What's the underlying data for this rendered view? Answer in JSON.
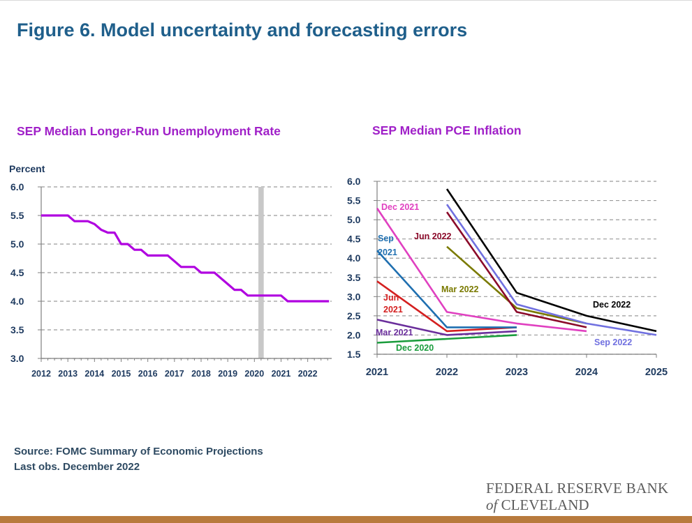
{
  "title": "Figure 6. Model uncertainty and forecasting errors",
  "footer": {
    "source": "Source: FOMC Summary of Economic Projections",
    "last_obs": "Last obs. December 2022"
  },
  "logo": {
    "line1": "FEDERAL RESERVE BANK",
    "of": "of",
    "line2": "CLEVELAND"
  },
  "colors": {
    "title": "#1f5f8b",
    "panel_title": "#a020c8",
    "bottom_bar": "#b87a3d"
  },
  "chart_data": [
    {
      "type": "line",
      "title": "SEP Median Longer-Run Unemployment Rate",
      "ylabel": "Percent",
      "ylim": [
        3.0,
        6.0
      ],
      "yticks": [
        "3.0",
        "3.5",
        "4.0",
        "4.5",
        "5.0",
        "5.5",
        "6.0"
      ],
      "xticks": [
        "2012",
        "2013",
        "2014",
        "2015",
        "2016",
        "2017",
        "2018",
        "2019",
        "2020",
        "2021",
        "2022"
      ],
      "xlim": [
        2012,
        2022.8
      ],
      "shaded_band": [
        2020.15,
        2020.35
      ],
      "grid": "horizontal dashed",
      "series": [
        {
          "color": "#b000e0",
          "points": [
            [
              2012.0,
              5.5
            ],
            [
              2013.0,
              5.5
            ],
            [
              2013.25,
              5.4
            ],
            [
              2013.75,
              5.4
            ],
            [
              2014.0,
              5.35
            ],
            [
              2014.25,
              5.25
            ],
            [
              2014.5,
              5.2
            ],
            [
              2014.75,
              5.2
            ],
            [
              2015.0,
              5.0
            ],
            [
              2015.25,
              5.0
            ],
            [
              2015.5,
              4.9
            ],
            [
              2015.75,
              4.9
            ],
            [
              2016.0,
              4.8
            ],
            [
              2016.25,
              4.8
            ],
            [
              2016.5,
              4.8
            ],
            [
              2016.75,
              4.8
            ],
            [
              2017.0,
              4.7
            ],
            [
              2017.25,
              4.6
            ],
            [
              2017.5,
              4.6
            ],
            [
              2017.75,
              4.6
            ],
            [
              2018.0,
              4.5
            ],
            [
              2018.25,
              4.5
            ],
            [
              2018.5,
              4.5
            ],
            [
              2018.75,
              4.4
            ],
            [
              2019.0,
              4.3
            ],
            [
              2019.25,
              4.2
            ],
            [
              2019.5,
              4.2
            ],
            [
              2019.75,
              4.1
            ],
            [
              2020.0,
              4.1
            ],
            [
              2020.5,
              4.1
            ],
            [
              2020.75,
              4.1
            ],
            [
              2021.0,
              4.1
            ],
            [
              2021.25,
              4.0
            ],
            [
              2021.5,
              4.0
            ],
            [
              2021.75,
              4.0
            ],
            [
              2022.0,
              4.0
            ],
            [
              2022.25,
              4.0
            ],
            [
              2022.5,
              4.0
            ],
            [
              2022.8,
              4.0
            ]
          ]
        }
      ]
    },
    {
      "type": "line",
      "title": "SEP Median PCE Inflation",
      "ylim": [
        1.5,
        6.0
      ],
      "yticks": [
        "1.5",
        "2.0",
        "2.5",
        "3.0",
        "3.5",
        "4.0",
        "4.5",
        "5.0",
        "5.5",
        "6.0"
      ],
      "xticks": [
        "2021",
        "2022",
        "2023",
        "2024",
        "2025"
      ],
      "xlim": [
        2021,
        2025
      ],
      "grid": "horizontal dashed",
      "series": [
        {
          "name": "Dec 2020",
          "color": "#1a9c3c",
          "x": [
            2021,
            2022,
            2023
          ],
          "y": [
            1.8,
            1.9,
            2.0
          ]
        },
        {
          "name": "Mar 2021",
          "color": "#6a2e9b",
          "x": [
            2021,
            2022,
            2023
          ],
          "y": [
            2.4,
            2.0,
            2.1
          ]
        },
        {
          "name": "Jun 2021",
          "color": "#d42020",
          "x": [
            2021,
            2022,
            2023
          ],
          "y": [
            3.4,
            2.1,
            2.2
          ]
        },
        {
          "name": "Sep 2021",
          "color": "#1f6fb0",
          "x": [
            2021,
            2022,
            2023
          ],
          "y": [
            4.2,
            2.2,
            2.2
          ]
        },
        {
          "name": "Dec 2021",
          "color": "#e040c0",
          "x": [
            2021,
            2022,
            2023,
            2024
          ],
          "y": [
            5.3,
            2.6,
            2.3,
            2.1
          ]
        },
        {
          "name": "Mar 2022",
          "color": "#7a7a00",
          "x": [
            2022,
            2023,
            2024
          ],
          "y": [
            4.3,
            2.7,
            2.3
          ]
        },
        {
          "name": "Jun 2022",
          "color": "#8b0a2a",
          "x": [
            2022,
            2023,
            2024
          ],
          "y": [
            5.2,
            2.6,
            2.2
          ]
        },
        {
          "name": "Sep 2022",
          "color": "#7070e0",
          "x": [
            2022,
            2023,
            2024,
            2025
          ],
          "y": [
            5.4,
            2.8,
            2.3,
            2.0
          ]
        },
        {
          "name": "Dec 2022",
          "color": "#000000",
          "x": [
            2022,
            2023,
            2024,
            2025
          ],
          "y": [
            5.8,
            3.1,
            2.5,
            2.1
          ]
        }
      ]
    }
  ]
}
